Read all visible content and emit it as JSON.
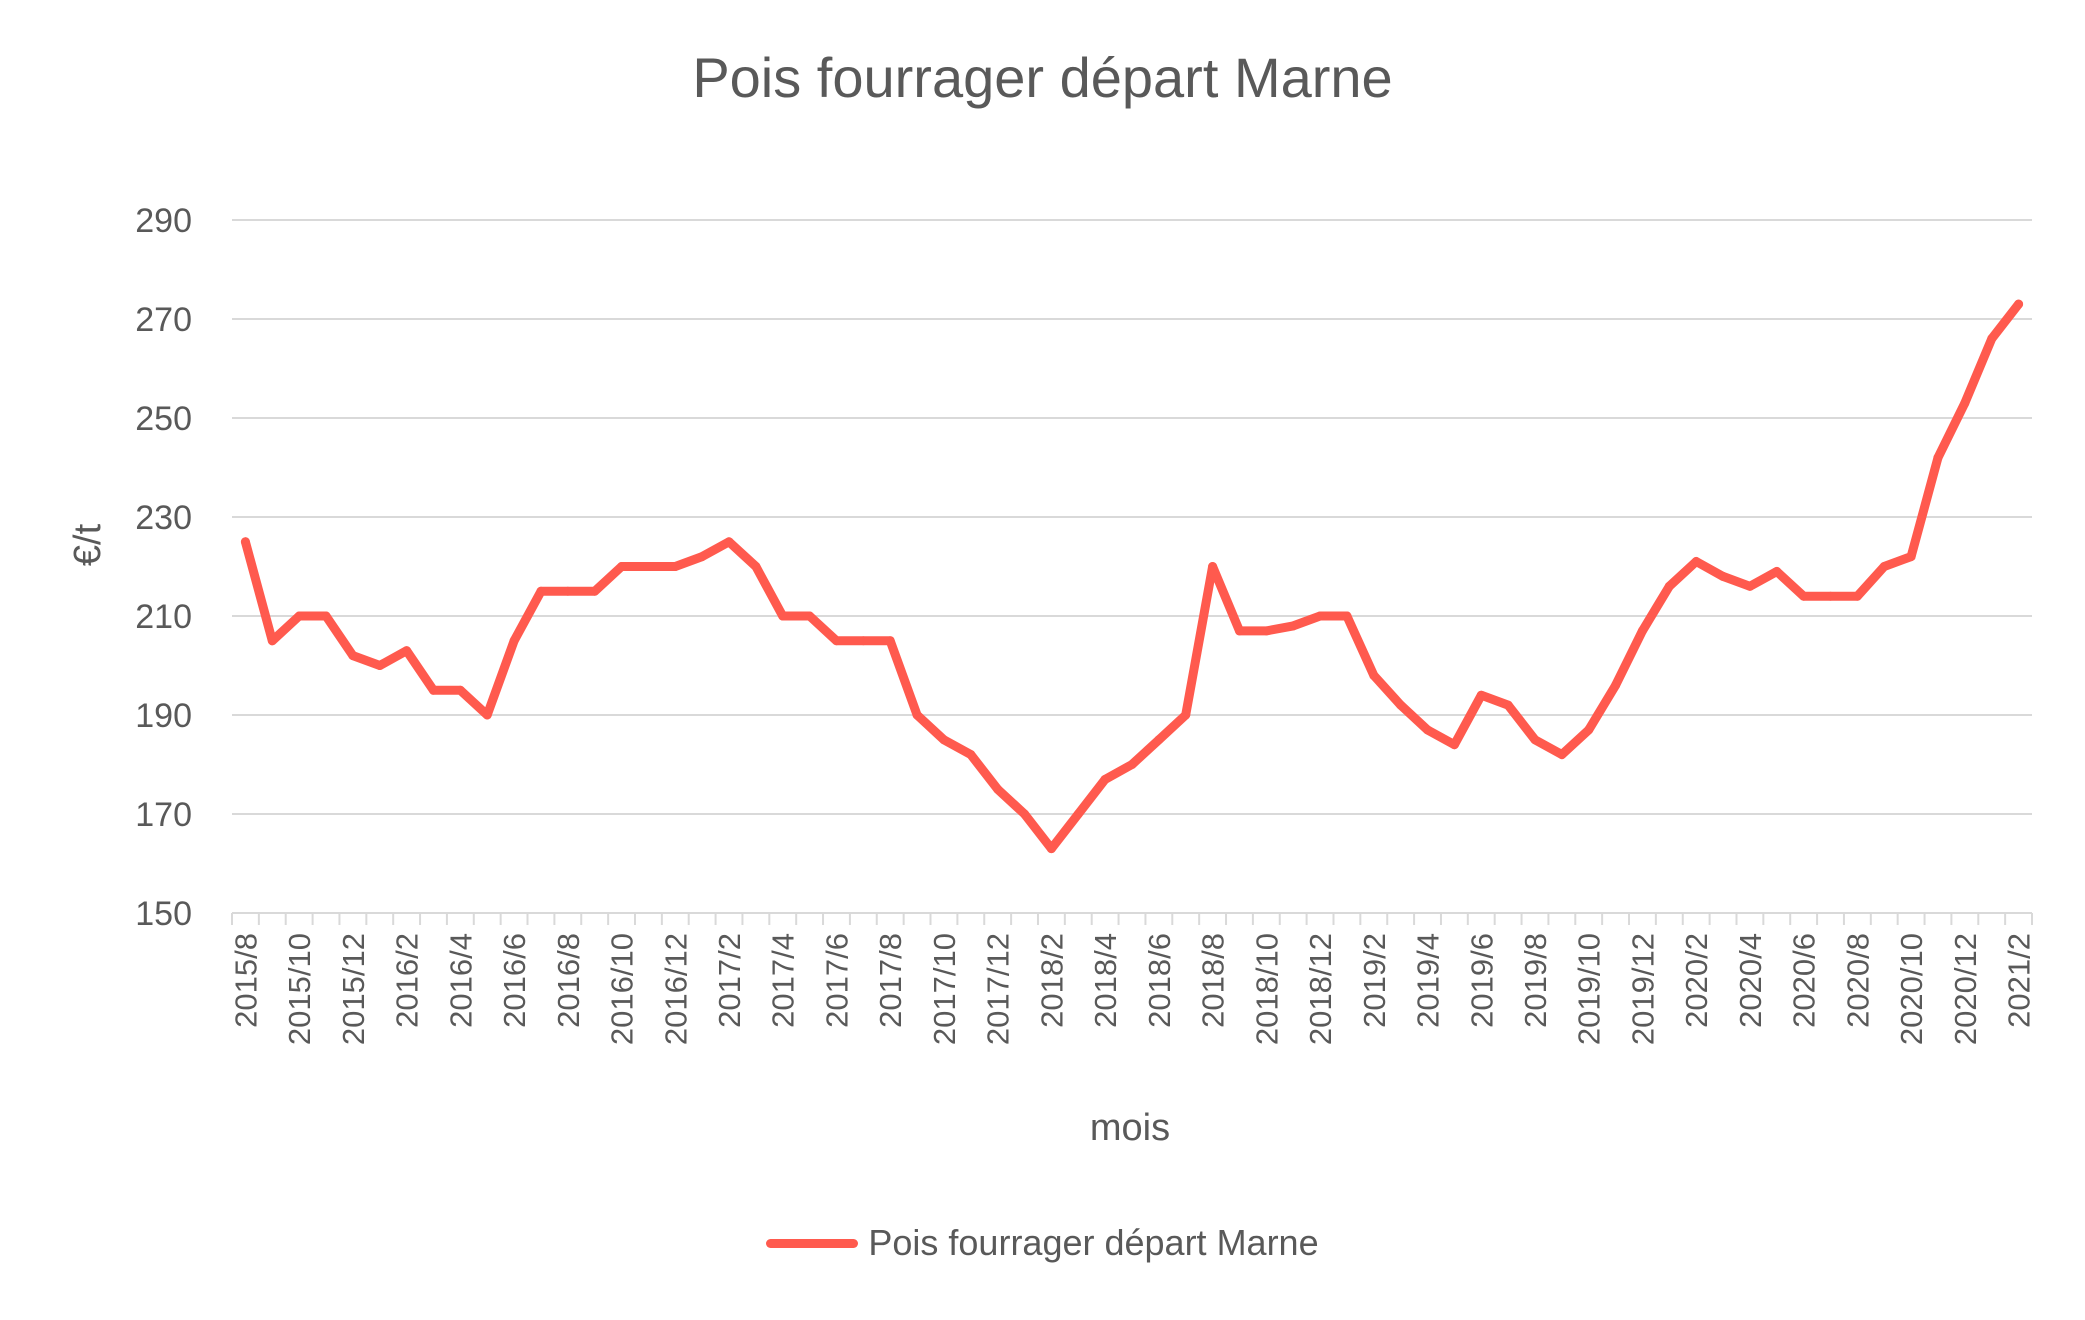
{
  "chart_data": {
    "type": "line",
    "title": "Pois fourrager départ Marne",
    "xlabel": "mois",
    "ylabel": "€/t",
    "ylim": [
      150,
      290
    ],
    "yticks": [
      150,
      170,
      190,
      210,
      230,
      250,
      270,
      290
    ],
    "grid": true,
    "legend_position": "bottom",
    "x": [
      "2015/8",
      "2015/9",
      "2015/10",
      "2015/11",
      "2015/12",
      "2016/1",
      "2016/2",
      "2016/3",
      "2016/4",
      "2016/5",
      "2016/6",
      "2016/7",
      "2016/8",
      "2016/9",
      "2016/10",
      "2016/11",
      "2016/12",
      "2017/1",
      "2017/2",
      "2017/3",
      "2017/4",
      "2017/5",
      "2017/6",
      "2017/7",
      "2017/8",
      "2017/9",
      "2017/10",
      "2017/11",
      "2017/12",
      "2018/1",
      "2018/2",
      "2018/3",
      "2018/4",
      "2018/5",
      "2018/6",
      "2018/7",
      "2018/8",
      "2018/9",
      "2018/10",
      "2018/11",
      "2018/12",
      "2019/1",
      "2019/2",
      "2019/3",
      "2019/4",
      "2019/5",
      "2019/6",
      "2019/7",
      "2019/8",
      "2019/9",
      "2019/10",
      "2019/11",
      "2019/12",
      "2020/1",
      "2020/2",
      "2020/3",
      "2020/4",
      "2020/5",
      "2020/6",
      "2020/7",
      "2020/8",
      "2020/9",
      "2020/10",
      "2020/11",
      "2020/12",
      "2021/1",
      "2021/2"
    ],
    "xtick_labels": [
      "2015/8",
      "2015/10",
      "2015/12",
      "2016/2",
      "2016/4",
      "2016/6",
      "2016/8",
      "2016/10",
      "2016/12",
      "2017/2",
      "2017/4",
      "2017/6",
      "2017/8",
      "2017/10",
      "2017/12",
      "2018/2",
      "2018/4",
      "2018/6",
      "2018/8",
      "2018/10",
      "2018/12",
      "2019/2",
      "2019/4",
      "2019/6",
      "2019/8",
      "2019/10",
      "2019/12",
      "2020/2",
      "2020/4",
      "2020/6",
      "2020/8",
      "2020/10",
      "2020/12",
      "2021/2"
    ],
    "series": [
      {
        "name": "Pois fourrager départ Marne",
        "color": "#ff5a4e",
        "values": [
          225,
          205,
          210,
          210,
          202,
          200,
          203,
          195,
          195,
          190,
          205,
          215,
          215,
          215,
          220,
          220,
          220,
          222,
          225,
          220,
          210,
          210,
          205,
          205,
          205,
          190,
          185,
          182,
          175,
          170,
          163,
          170,
          177,
          180,
          185,
          190,
          220,
          207,
          207,
          208,
          210,
          210,
          198,
          192,
          187,
          184,
          194,
          192,
          185,
          182,
          187,
          196,
          207,
          216,
          221,
          218,
          216,
          219,
          214,
          214,
          214,
          220,
          222,
          242,
          253,
          266,
          273
        ]
      }
    ]
  }
}
